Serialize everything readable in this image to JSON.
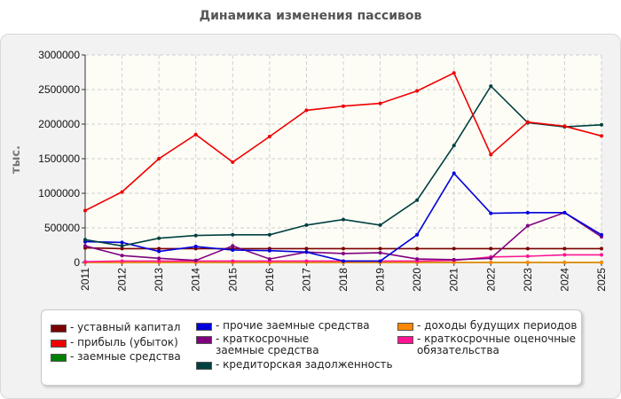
{
  "chart_data": {
    "type": "line",
    "title": "Динамика изменения пассивов",
    "ylabel": "тыс.",
    "xlabel": "",
    "ylim": [
      0,
      3000000
    ],
    "y_ticks": [
      "0",
      "500000",
      "1000000",
      "1500000",
      "2000000",
      "2500000",
      "3000000"
    ],
    "x": [
      "2011",
      "2012",
      "2013",
      "2014",
      "2015",
      "2016",
      "2017",
      "2018",
      "2019",
      "2020",
      "2021",
      "2022",
      "2023",
      "2024",
      "2025"
    ],
    "grid": true,
    "legend_position": "bottom",
    "series": [
      {
        "name": "уставный капитал",
        "color": "#7b0000",
        "values": [
          210000,
          200000,
          200000,
          200000,
          200000,
          200000,
          200000,
          200000,
          200000,
          200000,
          200000,
          200000,
          200000,
          200000,
          200000
        ]
      },
      {
        "name": "прибыль (убыток)",
        "color": "#ee0000",
        "values": [
          750000,
          1020000,
          1500000,
          1850000,
          1450000,
          1820000,
          2200000,
          2260000,
          2300000,
          2480000,
          2740000,
          1560000,
          2030000,
          1970000,
          1830000
        ]
      },
      {
        "name": "заемные средства",
        "color": "#008000",
        "values": [
          0,
          0,
          0,
          0,
          0,
          0,
          0,
          0,
          0,
          0,
          0,
          0,
          0,
          0,
          0
        ]
      },
      {
        "name": "прочие заемные средства",
        "color": "#0000dd",
        "values": [
          300000,
          290000,
          160000,
          230000,
          180000,
          170000,
          150000,
          20000,
          20000,
          400000,
          1290000,
          710000,
          720000,
          720000,
          400000
        ]
      },
      {
        "name": "краткосрочные заемные средства",
        "color": "#800080",
        "values": [
          240000,
          100000,
          60000,
          30000,
          240000,
          50000,
          150000,
          130000,
          140000,
          50000,
          40000,
          60000,
          530000,
          720000,
          370000
        ]
      },
      {
        "name": "кредиторская задолженность",
        "color": "#004040",
        "values": [
          330000,
          240000,
          350000,
          390000,
          400000,
          400000,
          540000,
          620000,
          540000,
          900000,
          1690000,
          2550000,
          2020000,
          1960000,
          1990000
        ]
      },
      {
        "name": "доходы будущих периодов",
        "color": "#ff8800",
        "values": [
          0,
          0,
          0,
          0,
          0,
          0,
          0,
          0,
          0,
          0,
          0,
          0,
          0,
          0,
          0
        ]
      },
      {
        "name": "краткосрочные оценочные обязательства",
        "color": "#ff1493",
        "values": [
          10000,
          20000,
          20000,
          20000,
          20000,
          20000,
          20000,
          20000,
          20000,
          20000,
          30000,
          80000,
          90000,
          110000,
          110000
        ]
      }
    ]
  },
  "legend": {
    "items": [
      {
        "label": "- уставный капитал",
        "color": "#7b0000"
      },
      {
        "label": "- прибыль (убыток)",
        "color": "#ee0000"
      },
      {
        "label": "- заемные средства",
        "color": "#008000"
      },
      {
        "label": "- прочие заемные средства",
        "color": "#0000dd"
      },
      {
        "label": "- краткосрочные заемные средства",
        "color": "#800080"
      },
      {
        "label": "- кредиторская задолженность",
        "color": "#004040"
      },
      {
        "label": "- доходы будущих периодов",
        "color": "#ff8800"
      },
      {
        "label": "- краткосрочные оценочные обязательства",
        "color": "#ff1493"
      }
    ]
  }
}
